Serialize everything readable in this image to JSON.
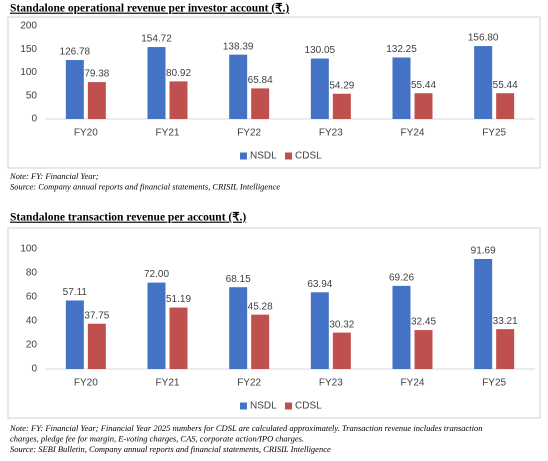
{
  "chart_data": [
    {
      "type": "bar",
      "title": "Standalone operational revenue per investor account (₹.)",
      "categories": [
        "FY20",
        "FY21",
        "FY22",
        "FY23",
        "FY24",
        "FY25"
      ],
      "series": [
        {
          "name": "NSDL",
          "color": "#4472c4",
          "values": [
            126.78,
            154.72,
            138.39,
            130.05,
            132.25,
            156.8
          ],
          "value_labels": [
            "126.78",
            "154.72",
            "138.39",
            "130.05",
            "132.25",
            "156.80"
          ]
        },
        {
          "name": "CDSL",
          "color": "#c0504d",
          "values": [
            79.38,
            80.92,
            65.84,
            54.29,
            55.44,
            55.44
          ],
          "value_labels": [
            "79.38",
            "80.92",
            "65.84",
            "54.29",
            "55.44",
            "55.44"
          ]
        }
      ],
      "ylim": [
        0,
        200
      ],
      "yticks": [
        0,
        50,
        100,
        150,
        200
      ],
      "grid": false,
      "legend": "bottom",
      "notes": [
        "Note: FY: Financial Year;",
        "Source: Company annual reports and financial statements, CRISIL Intelligence"
      ]
    },
    {
      "type": "bar",
      "title": "Standalone transaction revenue per account (₹.)",
      "categories": [
        "FY20",
        "FY21",
        "FY22",
        "FY23",
        "FY24",
        "FY25"
      ],
      "series": [
        {
          "name": "NSDL",
          "color": "#4472c4",
          "values": [
            57.11,
            72.0,
            68.15,
            63.94,
            69.26,
            91.69
          ],
          "value_labels": [
            "57.11",
            "72.00",
            "68.15",
            "63.94",
            "69.26",
            "91.69"
          ]
        },
        {
          "name": "CDSL",
          "color": "#c0504d",
          "values": [
            37.75,
            51.19,
            45.28,
            30.32,
            32.45,
            33.21
          ],
          "value_labels": [
            "37.75",
            "51.19",
            "45.28",
            "30.32",
            "32.45",
            "33.21"
          ]
        }
      ],
      "ylim": [
        0,
        100
      ],
      "yticks": [
        0,
        20,
        40,
        60,
        80,
        100
      ],
      "grid": false,
      "legend": "bottom",
      "notes": [
        "Note: FY: Financial Year; Financial Year 2025 numbers for CDSL are calculated approximately. Transaction revenue includes transaction",
        "charges, pledge fee for margin, E-voting charges, CAS, corporate action/IPO charges.",
        "Source: SEBI Bulletin, Company annual reports and financial statements, CRISIL Intelligence"
      ]
    }
  ]
}
